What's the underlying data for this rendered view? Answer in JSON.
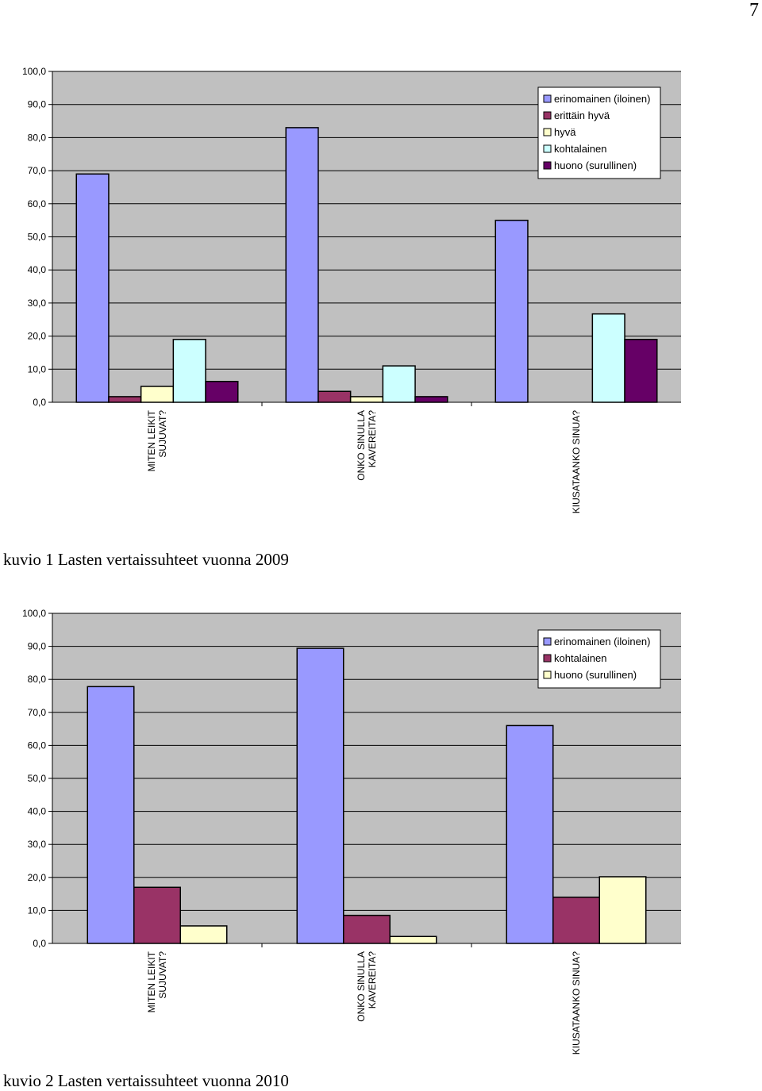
{
  "page_number": "7",
  "captions": [
    "kuvio 1 Lasten vertaissuhteet vuonna 2009",
    "kuvio 2 Lasten vertaissuhteet vuonna 2010"
  ],
  "chart_data": [
    {
      "type": "bar",
      "caption": "kuvio 1 Lasten vertaissuhteet vuonna 2009",
      "categories": [
        "MITEN LEIKIT SUJUVAT?",
        "ONKO SINULLA KAVEREITA?",
        "KIUSATAANKO SINUA?"
      ],
      "category_lines": [
        [
          "MITEN LEIKIT",
          "SUJUVAT?"
        ],
        [
          "ONKO SINULLA",
          "KAVEREITA?"
        ],
        [
          "KIUSATAANKO SINUA?"
        ]
      ],
      "ylim": [
        0,
        100
      ],
      "yticks": [
        "0,0",
        "10,0",
        "20,0",
        "30,0",
        "40,0",
        "50,0",
        "60,0",
        "70,0",
        "80,0",
        "90,0",
        "100,0"
      ],
      "grid": true,
      "legend_position": "top-right",
      "series": [
        {
          "name": "erinomainen (iloinen)",
          "color": "#9999ff",
          "values": [
            69,
            83,
            55
          ]
        },
        {
          "name": "erittäin hyvä",
          "color": "#993366",
          "values": [
            1.7,
            3.3,
            0
          ]
        },
        {
          "name": "hyvä",
          "color": "#ffffcc",
          "values": [
            4.8,
            1.7,
            0
          ]
        },
        {
          "name": "kohtalainen",
          "color": "#ccffff",
          "values": [
            19,
            11,
            26.7
          ]
        },
        {
          "name": "huono (surullinen)",
          "color": "#660066",
          "values": [
            6.3,
            1.7,
            19
          ]
        }
      ]
    },
    {
      "type": "bar",
      "caption": "kuvio 2 Lasten vertaissuhteet vuonna 2010",
      "categories": [
        "MITEN LEIKIT SUJUVAT?",
        "ONKO SINULLA KAVEREITA?",
        "KIUSATAANKO SINUA?"
      ],
      "category_lines": [
        [
          "MITEN LEIKIT",
          "SUJUVAT?"
        ],
        [
          "ONKO SINULLA",
          "KAVEREITA?"
        ],
        [
          "KIUSATAANKO SINUA?"
        ]
      ],
      "ylim": [
        0,
        100
      ],
      "yticks": [
        "0,0",
        "10,0",
        "20,0",
        "30,0",
        "40,0",
        "50,0",
        "60,0",
        "70,0",
        "80,0",
        "90,0",
        "100,0"
      ],
      "grid": true,
      "legend_position": "top-right",
      "series": [
        {
          "name": "erinomainen (iloinen)",
          "color": "#9999ff",
          "values": [
            77.8,
            89.4,
            66
          ]
        },
        {
          "name": "kohtalainen",
          "color": "#993366",
          "values": [
            17,
            8.5,
            14
          ]
        },
        {
          "name": "huono (surullinen)",
          "color": "#ffffcc",
          "values": [
            5.3,
            2.1,
            20.2
          ]
        }
      ]
    }
  ]
}
